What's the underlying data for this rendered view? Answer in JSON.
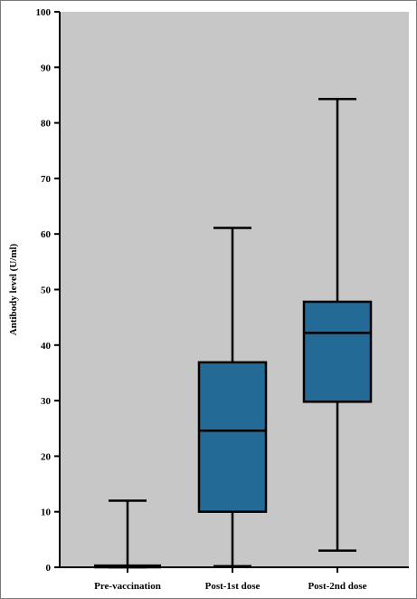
{
  "chart_data": {
    "type": "boxplot",
    "title": "",
    "xlabel": "",
    "ylabel": "Antibody level (U/ml)",
    "ylim": [
      0,
      100
    ],
    "yticks": [
      0,
      10,
      20,
      30,
      40,
      50,
      60,
      70,
      80,
      90,
      100
    ],
    "categories": [
      "Pre-vaccination",
      "Post-1st dose",
      "Post-2nd dose"
    ],
    "boxes": [
      {
        "category": "Pre-vaccination",
        "min": 0,
        "q1": 0,
        "median": 0,
        "q3": 0.3,
        "max": 12
      },
      {
        "category": "Post-1st dose",
        "min": 0.2,
        "q1": 10,
        "median": 24.6,
        "q3": 36.9,
        "max": 61.1
      },
      {
        "category": "Post-2nd dose",
        "min": 3,
        "q1": 29.8,
        "median": 42.2,
        "q3": 47.8,
        "max": 84.3
      }
    ],
    "colors": {
      "plot_background": "#c8c7c8",
      "box_fill": "#236a96",
      "stroke": "#000000"
    },
    "grid": false,
    "legend": "none"
  }
}
